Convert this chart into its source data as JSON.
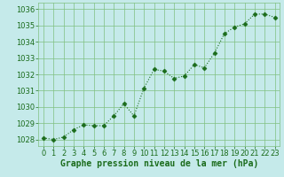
{
  "x": [
    0,
    1,
    2,
    3,
    4,
    5,
    6,
    7,
    8,
    9,
    10,
    11,
    12,
    13,
    14,
    15,
    16,
    17,
    18,
    19,
    20,
    21,
    22,
    23
  ],
  "y": [
    1028.1,
    1028.0,
    1028.15,
    1028.6,
    1028.9,
    1028.85,
    1028.85,
    1029.45,
    1030.2,
    1029.45,
    1031.15,
    1032.3,
    1032.2,
    1031.75,
    1031.9,
    1032.6,
    1032.4,
    1033.3,
    1034.5,
    1034.9,
    1035.1,
    1035.7,
    1035.7,
    1035.5
  ],
  "line_color": "#1a6b1a",
  "marker": "D",
  "markersize": 2.5,
  "bg_color": "#c5eaea",
  "grid_color": "#80c080",
  "xlabel": "Graphe pression niveau de la mer (hPa)",
  "xlabel_color": "#1a6b1a",
  "tick_color": "#1a6b1a",
  "ylim": [
    1027.6,
    1036.4
  ],
  "yticks": [
    1028,
    1029,
    1030,
    1031,
    1032,
    1033,
    1034,
    1035,
    1036
  ],
  "xlim": [
    -0.5,
    23.5
  ],
  "xticks": [
    0,
    1,
    2,
    3,
    4,
    5,
    6,
    7,
    8,
    9,
    10,
    11,
    12,
    13,
    14,
    15,
    16,
    17,
    18,
    19,
    20,
    21,
    22,
    23
  ],
  "xlabel_fontsize": 7,
  "tick_fontsize": 6,
  "linewidth": 0.8
}
